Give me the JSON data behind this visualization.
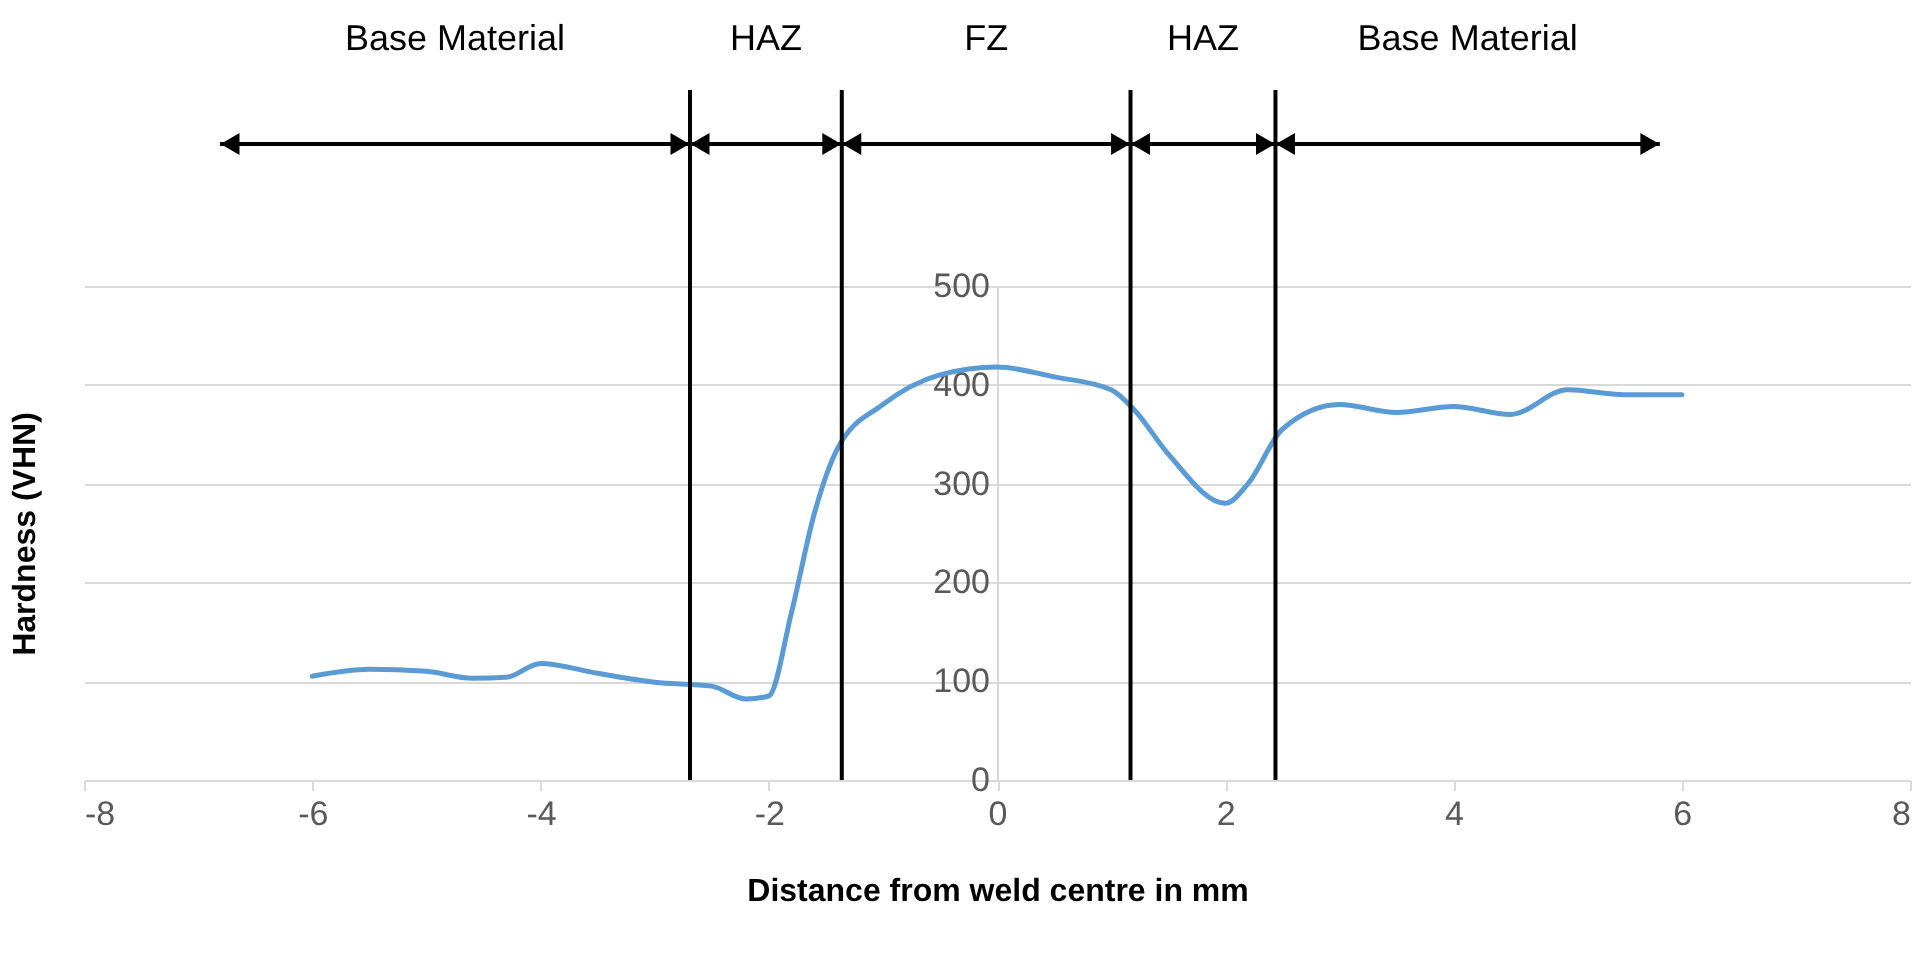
{
  "chart_data": {
    "type": "line",
    "xlabel": "Distance from weld centre in mm",
    "ylabel": "Hardness (VHN)",
    "x": [
      -6,
      -5.5,
      -5,
      -4.6,
      -4.3,
      -4,
      -3.5,
      -3,
      -2.5,
      -2.2,
      -2,
      -1.8,
      -1.6,
      -1.4,
      -1,
      -0.5,
      0,
      0.5,
      1,
      1.2,
      1.5,
      2,
      2.2,
      2.5,
      3,
      3.5,
      4,
      4.5,
      5,
      5.5,
      6
    ],
    "series": [
      {
        "color": "#5b9bd5",
        "values": [
          105,
          112,
          110,
          103,
          104,
          118,
          108,
          99,
          95,
          82,
          85,
          170,
          270,
          335,
          380,
          410,
          418,
          408,
          395,
          375,
          330,
          280,
          300,
          355,
          380,
          372,
          378,
          370,
          395,
          390,
          390
        ]
      }
    ],
    "xlim": [
      -8,
      8
    ],
    "xticks": [
      -8,
      -6,
      -4,
      -2,
      0,
      2,
      4,
      6,
      8
    ],
    "ylim": [
      0,
      500
    ],
    "yticks": [
      0,
      100,
      200,
      300,
      400,
      500
    ],
    "grid": "y",
    "line_style": "solid",
    "marker": "none",
    "ref_lines": [
      {
        "axis": "x",
        "value": -2.69,
        "color": "#000000"
      },
      {
        "axis": "x",
        "value": -1.36,
        "color": "#000000"
      },
      {
        "axis": "x",
        "value": 1.17,
        "color": "#000000"
      },
      {
        "axis": "x",
        "value": 2.44,
        "color": "#000000"
      }
    ],
    "annotations": [
      "Base Material",
      "HAZ",
      "FZ",
      "HAZ",
      "Base Material"
    ]
  }
}
